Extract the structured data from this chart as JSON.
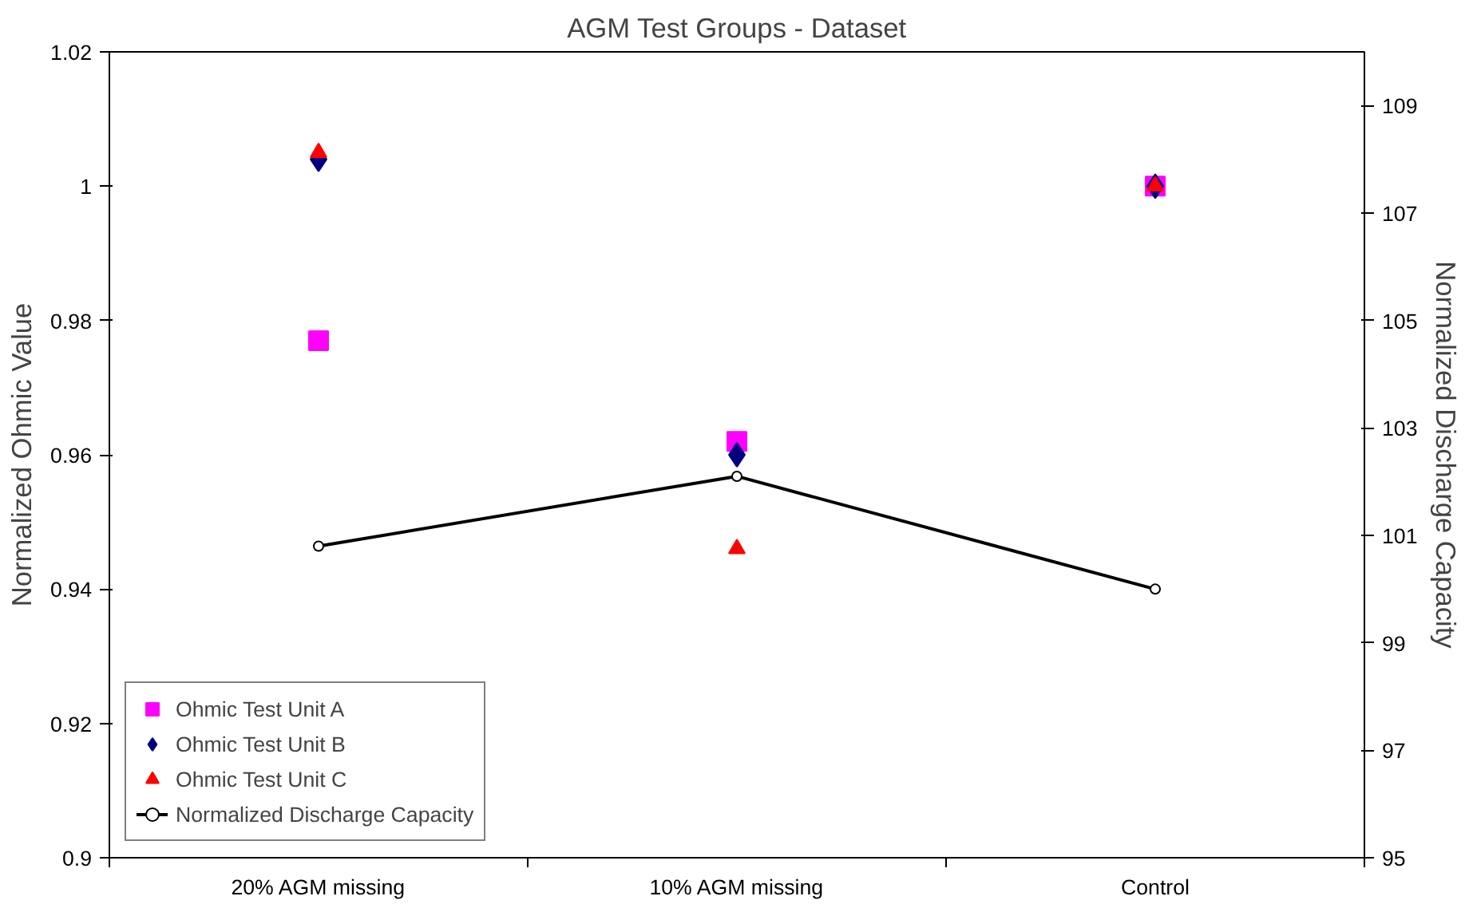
{
  "chart_data": {
    "type": "scatter",
    "title": "AGM Test Groups - Dataset",
    "ylabel": "Normalized Ohmic Value",
    "y2label": "Normalized Discharge Capacity",
    "categories": [
      "20% AGM missing",
      "10% AGM missing",
      "Control"
    ],
    "series": [
      {
        "name": "Ohmic Test Unit A",
        "color": "#ff00ff",
        "marker": "square",
        "values": [
          0.977,
          0.962,
          1.0
        ]
      },
      {
        "name": "Ohmic Test Unit B",
        "color": "#000080",
        "marker": "diamond",
        "values": [
          1.004,
          0.96,
          1.0
        ]
      },
      {
        "name": "Ohmic Test Unit C",
        "color": "#ff0000",
        "marker": "triangle",
        "values": [
          1.005,
          0.946,
          1.0
        ]
      },
      {
        "name": "Normalized Discharge Capacity",
        "type": "line",
        "axis": "y2",
        "color": "#000000",
        "marker": "circle",
        "values": [
          100.8,
          102.1,
          100.0
        ]
      }
    ],
    "ylim": [
      0.9,
      1.02
    ],
    "yticks": [
      0.9,
      0.92,
      0.94,
      0.96,
      0.98,
      {
        "value": 1.0,
        "label": "1"
      },
      1.02
    ],
    "y2lim": [
      95,
      110
    ],
    "y2ticks": [
      95,
      97,
      99,
      101,
      103,
      105,
      107,
      109
    ],
    "grid": false,
    "legend": "bottom left"
  }
}
